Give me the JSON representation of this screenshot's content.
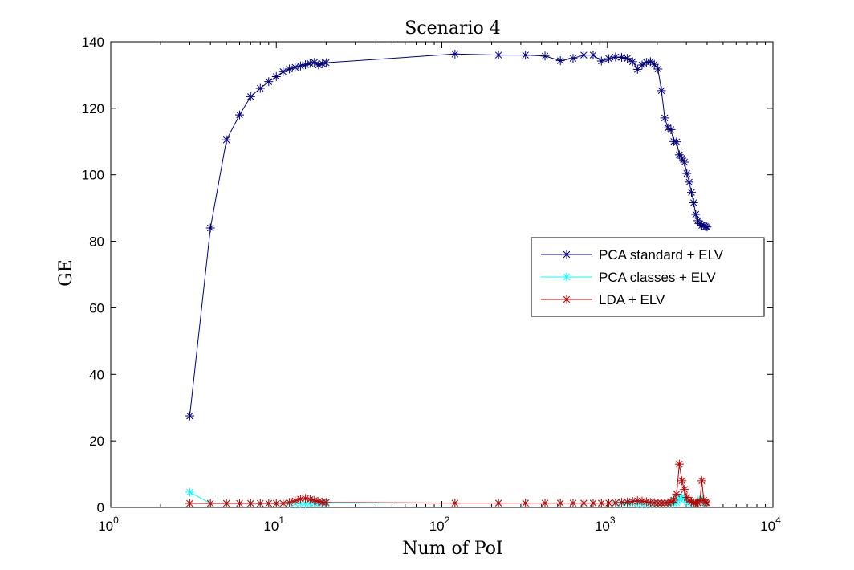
{
  "chart_data": {
    "type": "line",
    "title": "Scenario 4",
    "xlabel": "Num of PoI",
    "ylabel": "GE",
    "x_scale": "log",
    "xlim": [
      1,
      10000
    ],
    "ylim": [
      0,
      140
    ],
    "x_ticks": [
      {
        "base": "10",
        "exp": "0"
      },
      {
        "base": "10",
        "exp": "1"
      },
      {
        "base": "10",
        "exp": "2"
      },
      {
        "base": "10",
        "exp": "3"
      },
      {
        "base": "10",
        "exp": "4"
      }
    ],
    "y_ticks": [
      "0",
      "20",
      "40",
      "60",
      "80",
      "100",
      "120",
      "140"
    ],
    "grid": false,
    "legend_position": "right-middle",
    "series": [
      {
        "name": "PCA standard + ELV",
        "color": "#00007f",
        "x": [
          3,
          4,
          5,
          6,
          7,
          8,
          9,
          10,
          11,
          12,
          13,
          14,
          15,
          16,
          17,
          18,
          19,
          20,
          120,
          220,
          320,
          420,
          520,
          620,
          720,
          820,
          920,
          1020,
          1120,
          1220,
          1320,
          1420,
          1520,
          1620,
          1720,
          1820,
          1920,
          2020,
          2120,
          2220,
          2320,
          2420,
          2520,
          2620,
          2720,
          2820,
          2920,
          3020,
          3120,
          3220,
          3320,
          3420,
          3520,
          3620,
          3720,
          3820,
          3920,
          4000
        ],
        "values": [
          27.5,
          84,
          110.5,
          118,
          123.5,
          126,
          128,
          129.5,
          131,
          131.8,
          132.3,
          132.7,
          133.1,
          133.5,
          133.8,
          133,
          133.4,
          133.7,
          136.3,
          136,
          136,
          135.7,
          134.3,
          135,
          136,
          136,
          134.2,
          134.9,
          135.4,
          135.3,
          135,
          134,
          131.7,
          133,
          133.8,
          134,
          133.2,
          131.8,
          125.3,
          117.1,
          114.1,
          113.6,
          110,
          109.9,
          106,
          105,
          103.8,
          100.4,
          97.8,
          94.7,
          91.6,
          88.1,
          86.2,
          85.3,
          84.8,
          84.6,
          84.4,
          84.3
        ]
      },
      {
        "name": "PCA classes + ELV",
        "color": "#00ffff",
        "x": [
          3,
          4,
          5,
          6,
          7,
          8,
          9,
          10,
          11,
          12,
          13,
          14,
          15,
          16,
          17,
          18,
          19,
          20,
          120,
          220,
          320,
          420,
          520,
          620,
          720,
          820,
          920,
          1020,
          1120,
          1220,
          1320,
          1420,
          1520,
          1620,
          1720,
          1820,
          1920,
          2020,
          2120,
          2220,
          2320,
          2420,
          2520,
          2620,
          2720,
          2820,
          2920,
          3020,
          3120,
          3220,
          3320,
          3420,
          3520,
          3620,
          3720,
          3820,
          3920,
          4000
        ],
        "values": [
          4.6,
          1.2,
          1.2,
          1.2,
          1.2,
          1.2,
          1.2,
          1.2,
          1.2,
          1.2,
          1.2,
          1.2,
          1.2,
          1.3,
          1.3,
          1.3,
          1.3,
          1.3,
          1.3,
          1.3,
          1.3,
          1.3,
          1.3,
          1.3,
          1.3,
          1.3,
          1.3,
          1.3,
          1.2,
          1.2,
          1.3,
          1.3,
          1.2,
          1.2,
          1.2,
          1.2,
          1.2,
          1.2,
          1.2,
          1.2,
          1.2,
          1.2,
          1.3,
          1.4,
          2.5,
          3.2,
          2.8,
          1.7,
          1.4,
          1.3,
          1.3,
          1.3,
          1.3,
          2.5,
          1.9,
          1.4,
          1.3,
          1.3
        ]
      },
      {
        "name": "LDA + ELV",
        "color": "#bf0000",
        "x": [
          3,
          4,
          5,
          6,
          7,
          8,
          9,
          10,
          11,
          12,
          13,
          14,
          15,
          16,
          17,
          18,
          19,
          20,
          120,
          220,
          320,
          420,
          520,
          620,
          720,
          820,
          920,
          1020,
          1120,
          1220,
          1320,
          1420,
          1520,
          1620,
          1720,
          1820,
          1920,
          2020,
          2120,
          2220,
          2320,
          2420,
          2520,
          2620,
          2720,
          2820,
          2920,
          3020,
          3120,
          3220,
          3320,
          3420,
          3520,
          3620,
          3720,
          3820,
          3920,
          4000
        ],
        "values": [
          1.2,
          1.2,
          1.2,
          1.2,
          1.2,
          1.2,
          1.2,
          1.2,
          1.2,
          1.5,
          2,
          2.5,
          2.7,
          2.4,
          2.1,
          1.8,
          1.6,
          1.5,
          1.3,
          1.3,
          1.3,
          1.3,
          1.3,
          1.3,
          1.3,
          1.3,
          1.3,
          1.3,
          1.4,
          1.5,
          1.6,
          1.8,
          2,
          1.9,
          1.7,
          1.5,
          1.4,
          1.3,
          1.3,
          1.3,
          1.4,
          1.6,
          2.2,
          4,
          13,
          8,
          5.4,
          3,
          2.2,
          1.7,
          1.4,
          1.3,
          1.3,
          2,
          8,
          2.2,
          1.5,
          1.3
        ]
      }
    ]
  }
}
